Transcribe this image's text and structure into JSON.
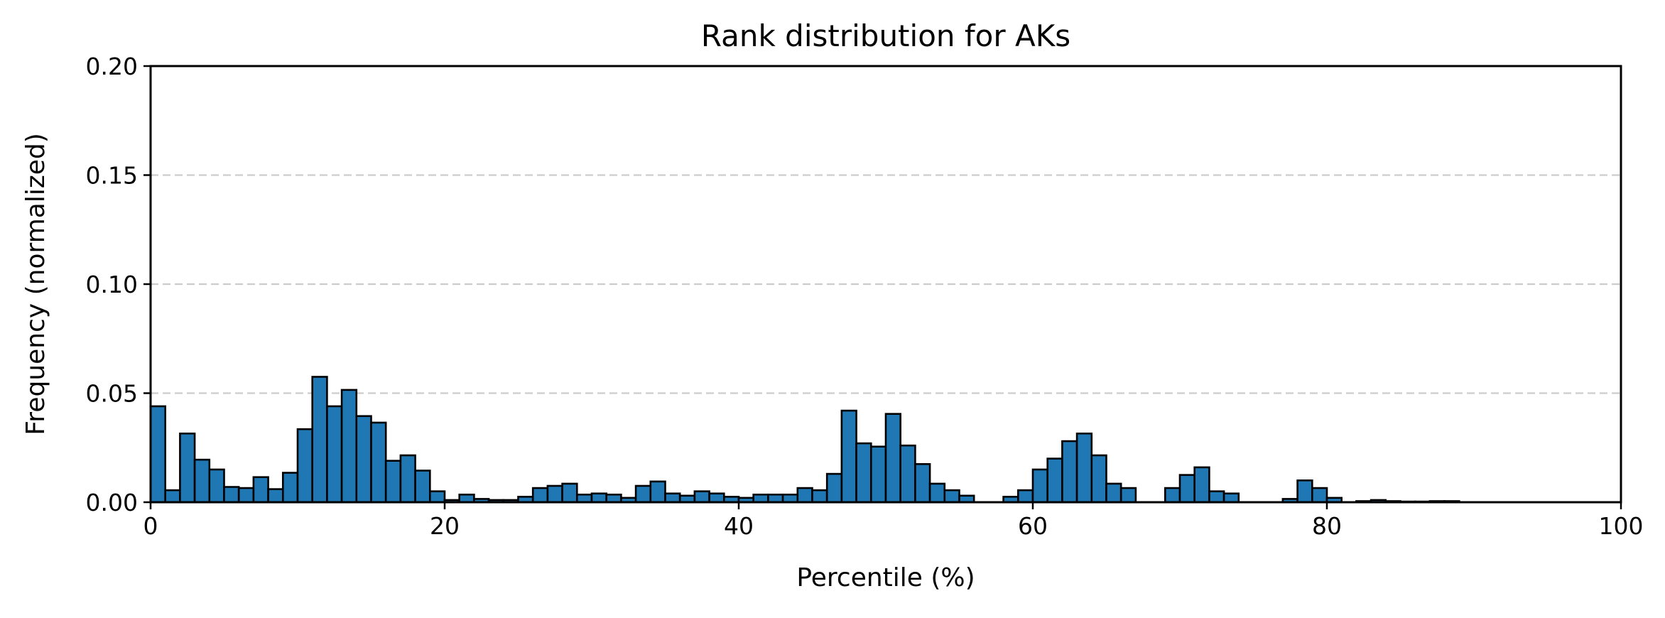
{
  "chart_data": {
    "type": "bar",
    "title": "Rank distribution for AKs",
    "xlabel": "Percentile (%)",
    "ylabel": "Frequency (normalized)",
    "xlim": [
      0,
      100
    ],
    "ylim": [
      0,
      0.2
    ],
    "bin_width": 1,
    "x_ticks": [
      "0",
      "20",
      "40",
      "60",
      "80",
      "100"
    ],
    "y_ticks": [
      "0.00",
      "0.05",
      "0.10",
      "0.15",
      "0.20"
    ],
    "grid": "y-dashed",
    "colors": {
      "bar": "#1f77b4",
      "bar_edge": "#000000",
      "grid": "#cccccc"
    },
    "bins_start": [
      0,
      1,
      2,
      3,
      4,
      5,
      6,
      7,
      8,
      9,
      10,
      11,
      12,
      13,
      14,
      15,
      16,
      17,
      18,
      19,
      20,
      21,
      22,
      23,
      24,
      25,
      26,
      27,
      28,
      29,
      30,
      31,
      32,
      33,
      34,
      35,
      36,
      37,
      38,
      39,
      40,
      41,
      42,
      43,
      44,
      45,
      46,
      47,
      48,
      49,
      50,
      51,
      52,
      53,
      54,
      55,
      56,
      57,
      58,
      59,
      60,
      61,
      62,
      63,
      64,
      65,
      66,
      67,
      68,
      69,
      70,
      71,
      72,
      73,
      74,
      75,
      76,
      77,
      78,
      79,
      80,
      81,
      82,
      83,
      84,
      85,
      86,
      87,
      88,
      89,
      90,
      91,
      92,
      93,
      94,
      95,
      96,
      97,
      98,
      99
    ],
    "values": [
      0.044,
      0.0055,
      0.0315,
      0.0195,
      0.015,
      0.007,
      0.0065,
      0.0115,
      0.006,
      0.0135,
      0.0335,
      0.0575,
      0.044,
      0.0515,
      0.0395,
      0.0365,
      0.019,
      0.0215,
      0.0145,
      0.005,
      0.001,
      0.0035,
      0.0015,
      0.001,
      0.001,
      0.0025,
      0.0065,
      0.0075,
      0.0085,
      0.0035,
      0.004,
      0.0035,
      0.002,
      0.0075,
      0.0095,
      0.004,
      0.003,
      0.005,
      0.004,
      0.0025,
      0.002,
      0.0035,
      0.0035,
      0.0035,
      0.0065,
      0.0055,
      0.013,
      0.042,
      0.027,
      0.0255,
      0.0405,
      0.026,
      0.0175,
      0.0085,
      0.0055,
      0.003,
      0,
      0,
      0.0025,
      0.0055,
      0.015,
      0.02,
      0.028,
      0.0315,
      0.0215,
      0.0085,
      0.0065,
      0,
      0,
      0.0065,
      0.0125,
      0.016,
      0.005,
      0.004,
      0,
      0,
      0,
      0.0015,
      0.01,
      0.0065,
      0.002,
      0,
      0.0005,
      0.001,
      0.0005,
      0.0003,
      0.0003,
      0.0005,
      0.0005,
      0,
      0,
      0,
      0,
      0,
      0,
      0,
      0,
      0,
      0,
      0
    ]
  }
}
